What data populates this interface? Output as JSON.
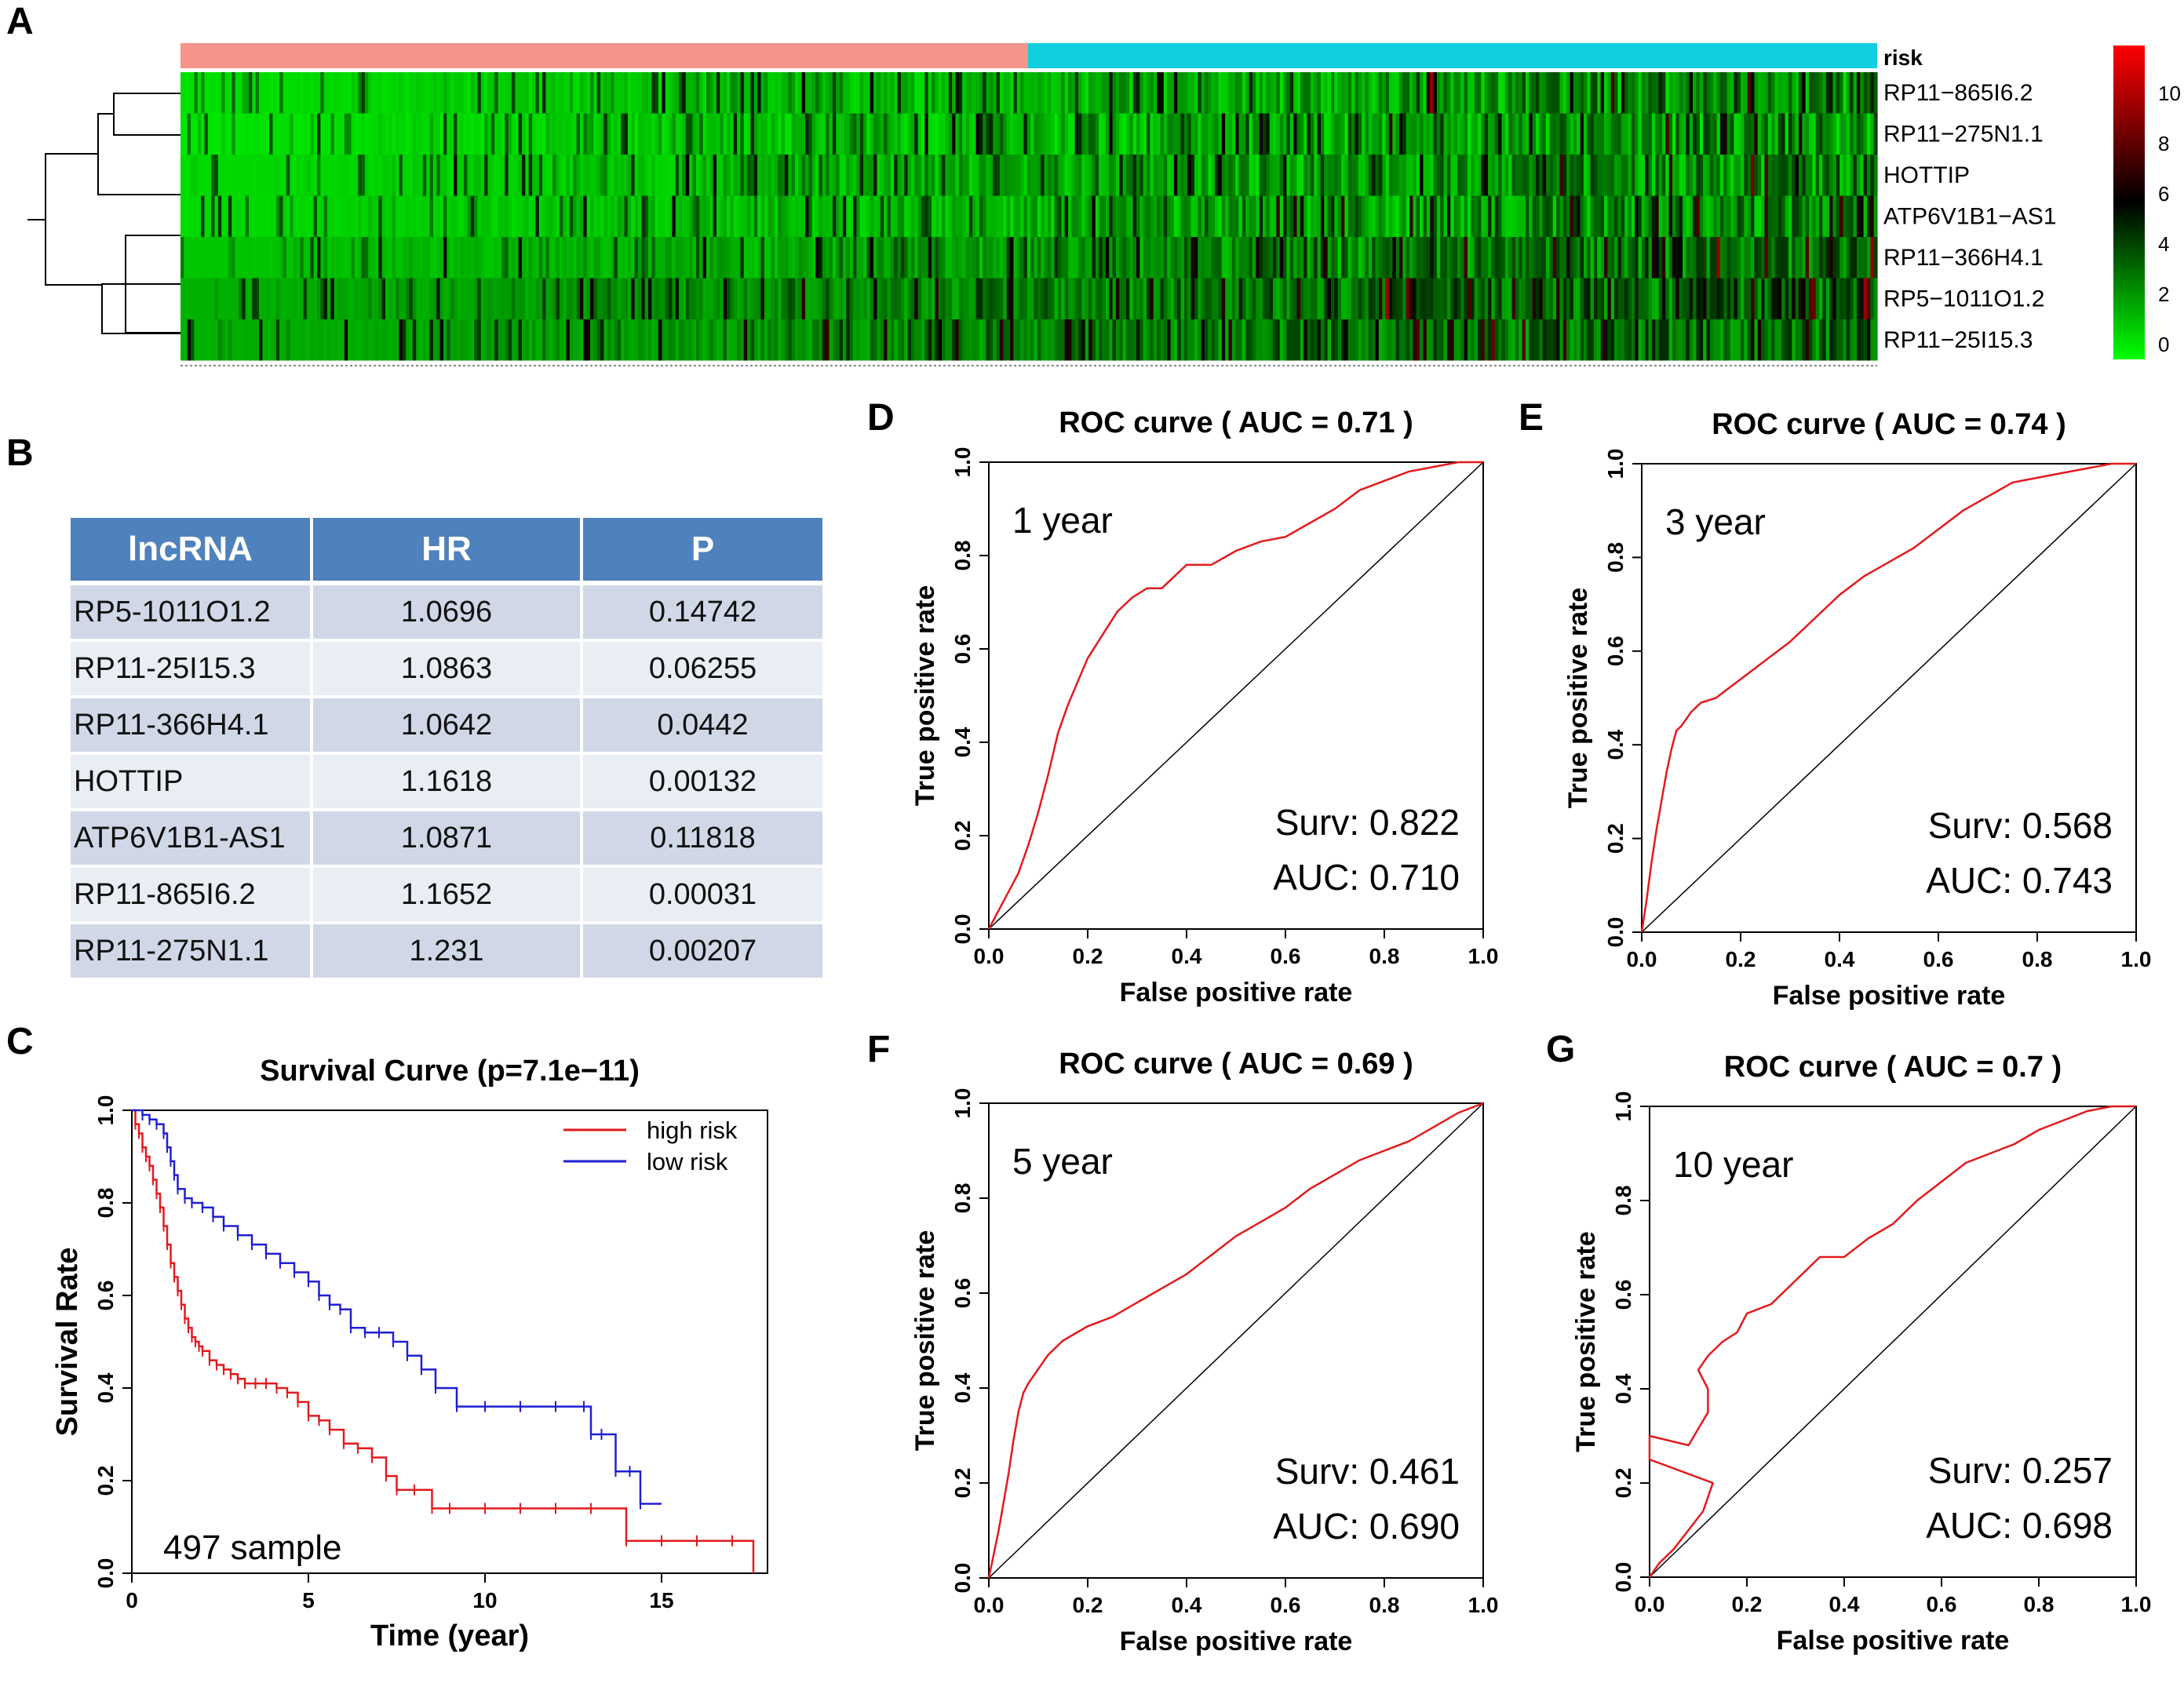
{
  "panels": {
    "A": "A",
    "B": "B",
    "C": "C",
    "D": "D",
    "E": "E",
    "F": "F",
    "G": "G"
  },
  "colors": {
    "high_risk": "#e31a1c",
    "low_risk": "#1f1fd1",
    "risk_high_bar": "#f4948a",
    "risk_low_bar": "#12cfe0",
    "heat_low": "#00ff00",
    "heat_mid": "#000000",
    "heat_high": "#ff0000",
    "table_header": "#4f81bd"
  },
  "heatmap": {
    "annotation_label": "risk",
    "genes": [
      "RP11−865I6.2",
      "RP11−275N1.1",
      "HOTTIP",
      "ATP6V1B1−AS1",
      "RP11−366H4.1",
      "RP5−1011O1.2",
      "RP11−25I15.3"
    ],
    "colorbar_ticks": [
      "10",
      "8",
      "6",
      "4",
      "2",
      "0"
    ]
  },
  "table": {
    "headers": [
      "lncRNA",
      "HR",
      "P"
    ],
    "rows": [
      {
        "lncrna": "RP5-1011O1.2",
        "hr": "1.0696",
        "p": "0.14742"
      },
      {
        "lncrna": "RP11-25I15.3",
        "hr": "1.0863",
        "p": "0.06255"
      },
      {
        "lncrna": "RP11-366H4.1",
        "hr": "1.0642",
        "p": "0.0442"
      },
      {
        "lncrna": "HOTTIP",
        "hr": "1.1618",
        "p": "0.00132"
      },
      {
        "lncrna": "ATP6V1B1-AS1",
        "hr": "1.0871",
        "p": "0.11818"
      },
      {
        "lncrna": "RP11-865I6.2",
        "hr": "1.1652",
        "p": "0.00031"
      },
      {
        "lncrna": "RP11-275N1.1",
        "hr": "1.231",
        "p": "0.00207"
      }
    ]
  },
  "chart_data": [
    {
      "id": "survival",
      "type": "line",
      "title": "Survival Curve (p=7.1e−11)",
      "xlabel": "Time (year)",
      "ylabel": "Survival Rate",
      "xlim": [
        0,
        18
      ],
      "ylim": [
        0,
        1
      ],
      "xticks": [
        "0",
        "5",
        "10",
        "15"
      ],
      "yticks": [
        "0.0",
        "0.2",
        "0.4",
        "0.6",
        "0.8",
        "1.0"
      ],
      "annotation": "497 sample",
      "legend": [
        "high risk",
        "low risk"
      ],
      "series": [
        {
          "name": "high risk",
          "x": [
            0,
            0.1,
            0.2,
            0.3,
            0.4,
            0.5,
            0.6,
            0.7,
            0.8,
            0.9,
            1.0,
            1.1,
            1.2,
            1.3,
            1.4,
            1.5,
            1.6,
            1.7,
            1.8,
            1.9,
            2.0,
            2.2,
            2.4,
            2.6,
            2.8,
            3.0,
            3.2,
            3.5,
            3.8,
            4.1,
            4.4,
            4.7,
            5.0,
            5.3,
            5.6,
            6.0,
            6.4,
            6.8,
            7.2,
            7.5,
            8.0,
            8.5,
            9.0,
            10.0,
            11.0,
            12.0,
            13.0,
            14.0,
            15.0,
            16.0,
            17.0,
            17.6
          ],
          "y": [
            1.0,
            0.97,
            0.95,
            0.92,
            0.9,
            0.88,
            0.85,
            0.82,
            0.79,
            0.75,
            0.71,
            0.67,
            0.64,
            0.61,
            0.58,
            0.55,
            0.53,
            0.51,
            0.5,
            0.49,
            0.48,
            0.46,
            0.45,
            0.44,
            0.43,
            0.42,
            0.41,
            0.41,
            0.41,
            0.4,
            0.39,
            0.37,
            0.34,
            0.33,
            0.31,
            0.28,
            0.27,
            0.25,
            0.21,
            0.18,
            0.18,
            0.14,
            0.14,
            0.14,
            0.14,
            0.14,
            0.14,
            0.07,
            0.07,
            0.07,
            0.07,
            0.0
          ]
        },
        {
          "name": "low risk",
          "x": [
            0,
            0.3,
            0.5,
            0.7,
            0.9,
            1.0,
            1.1,
            1.2,
            1.3,
            1.5,
            1.7,
            2.0,
            2.3,
            2.6,
            3.0,
            3.4,
            3.8,
            4.2,
            4.6,
            5.0,
            5.3,
            5.6,
            5.9,
            6.2,
            6.6,
            7.0,
            7.4,
            7.8,
            8.2,
            8.6,
            9.2,
            10.0,
            11.0,
            12.0,
            12.8,
            13.0,
            13.3,
            13.7,
            14.1,
            14.4,
            15.0
          ],
          "y": [
            1.0,
            0.99,
            0.98,
            0.97,
            0.95,
            0.92,
            0.89,
            0.86,
            0.83,
            0.81,
            0.8,
            0.79,
            0.77,
            0.75,
            0.73,
            0.71,
            0.69,
            0.67,
            0.65,
            0.63,
            0.6,
            0.58,
            0.57,
            0.53,
            0.52,
            0.52,
            0.5,
            0.47,
            0.44,
            0.4,
            0.36,
            0.36,
            0.36,
            0.36,
            0.36,
            0.3,
            0.3,
            0.22,
            0.22,
            0.15,
            0.15
          ]
        }
      ]
    },
    {
      "id": "rocD",
      "type": "line",
      "title": "ROC curve ( AUC =  0.71 )",
      "xlabel": "False positive rate",
      "ylabel": "True positive rate",
      "xlim": [
        0,
        1
      ],
      "ylim": [
        0,
        1
      ],
      "xticks": [
        "0.0",
        "0.2",
        "0.4",
        "0.6",
        "0.8",
        "1.0"
      ],
      "yticks": [
        "0.0",
        "0.2",
        "0.4",
        "0.6",
        "0.8",
        "1.0"
      ],
      "label": "1 year",
      "surv": "Surv: 0.822",
      "auc": "AUC: 0.710",
      "series": [
        {
          "name": "roc",
          "x": [
            0,
            0.02,
            0.04,
            0.06,
            0.08,
            0.1,
            0.12,
            0.14,
            0.16,
            0.18,
            0.2,
            0.23,
            0.26,
            0.29,
            0.32,
            0.35,
            0.4,
            0.45,
            0.5,
            0.55,
            0.6,
            0.65,
            0.7,
            0.75,
            0.8,
            0.85,
            0.9,
            0.95,
            1.0
          ],
          "y": [
            0,
            0.04,
            0.08,
            0.12,
            0.18,
            0.25,
            0.33,
            0.42,
            0.48,
            0.53,
            0.58,
            0.63,
            0.68,
            0.71,
            0.73,
            0.73,
            0.78,
            0.78,
            0.81,
            0.83,
            0.84,
            0.87,
            0.9,
            0.94,
            0.96,
            0.98,
            0.99,
            1.0,
            1.0
          ]
        }
      ]
    },
    {
      "id": "rocE",
      "type": "line",
      "title": "ROC curve ( AUC =  0.74 )",
      "xlabel": "False positive rate",
      "ylabel": "True positive rate",
      "xlim": [
        0,
        1
      ],
      "ylim": [
        0,
        1
      ],
      "xticks": [
        "0.0",
        "0.2",
        "0.4",
        "0.6",
        "0.8",
        "1.0"
      ],
      "yticks": [
        "0.0",
        "0.2",
        "0.4",
        "0.6",
        "0.8",
        "1.0"
      ],
      "label": "3 year",
      "surv": "Surv: 0.568",
      "auc": "AUC: 0.743",
      "series": [
        {
          "name": "roc",
          "x": [
            0,
            0.01,
            0.02,
            0.03,
            0.04,
            0.05,
            0.06,
            0.07,
            0.08,
            0.1,
            0.12,
            0.15,
            0.2,
            0.25,
            0.3,
            0.35,
            0.4,
            0.45,
            0.5,
            0.55,
            0.6,
            0.65,
            0.7,
            0.75,
            0.8,
            0.85,
            0.9,
            0.95,
            1.0
          ],
          "y": [
            0,
            0.07,
            0.15,
            0.22,
            0.28,
            0.34,
            0.39,
            0.43,
            0.44,
            0.47,
            0.49,
            0.5,
            0.54,
            0.58,
            0.62,
            0.67,
            0.72,
            0.76,
            0.79,
            0.82,
            0.86,
            0.9,
            0.93,
            0.96,
            0.97,
            0.98,
            0.99,
            1.0,
            1.0
          ]
        }
      ]
    },
    {
      "id": "rocF",
      "type": "line",
      "title": "ROC curve ( AUC =  0.69 )",
      "xlabel": "False positive rate",
      "ylabel": "True positive rate",
      "xlim": [
        0,
        1
      ],
      "ylim": [
        0,
        1
      ],
      "xticks": [
        "0.0",
        "0.2",
        "0.4",
        "0.6",
        "0.8",
        "1.0"
      ],
      "yticks": [
        "0.0",
        "0.2",
        "0.4",
        "0.6",
        "0.8",
        "1.0"
      ],
      "label": "5 year",
      "surv": "Surv: 0.461",
      "auc": "AUC: 0.690",
      "series": [
        {
          "name": "roc",
          "x": [
            0,
            0.01,
            0.02,
            0.03,
            0.04,
            0.05,
            0.06,
            0.07,
            0.08,
            0.1,
            0.12,
            0.15,
            0.2,
            0.25,
            0.3,
            0.35,
            0.4,
            0.45,
            0.5,
            0.55,
            0.6,
            0.65,
            0.7,
            0.75,
            0.8,
            0.85,
            0.9,
            0.95,
            1.0
          ],
          "y": [
            0,
            0.05,
            0.1,
            0.16,
            0.22,
            0.29,
            0.35,
            0.39,
            0.41,
            0.44,
            0.47,
            0.5,
            0.53,
            0.55,
            0.58,
            0.61,
            0.64,
            0.68,
            0.72,
            0.75,
            0.78,
            0.82,
            0.85,
            0.88,
            0.9,
            0.92,
            0.95,
            0.98,
            1.0
          ]
        }
      ]
    },
    {
      "id": "rocG",
      "type": "line",
      "title": "ROC curve ( AUC =  0.7 )",
      "xlabel": "False positive rate",
      "ylabel": "True positive rate",
      "xlim": [
        0,
        1
      ],
      "ylim": [
        0,
        1
      ],
      "xticks": [
        "0.0",
        "0.2",
        "0.4",
        "0.6",
        "0.8",
        "1.0"
      ],
      "yticks": [
        "0.0",
        "0.2",
        "0.4",
        "0.6",
        "0.8",
        "1.0"
      ],
      "label": "10 year",
      "surv": "Surv: 0.257",
      "auc": "AUC: 0.698",
      "series": [
        {
          "name": "roc",
          "x": [
            0,
            0.02,
            0.05,
            0.08,
            0.11,
            0.13,
            0.0,
            0.0,
            0.08,
            0.12,
            0.12,
            0.1,
            0.12,
            0.15,
            0.18,
            0.2,
            0.25,
            0.3,
            0.35,
            0.4,
            0.45,
            0.5,
            0.55,
            0.6,
            0.65,
            0.7,
            0.75,
            0.8,
            0.85,
            0.9,
            0.95,
            1.0
          ],
          "y": [
            0,
            0.03,
            0.06,
            0.1,
            0.14,
            0.2,
            0.25,
            0.3,
            0.28,
            0.35,
            0.4,
            0.44,
            0.47,
            0.5,
            0.52,
            0.56,
            0.58,
            0.63,
            0.68,
            0.68,
            0.72,
            0.75,
            0.8,
            0.84,
            0.88,
            0.9,
            0.92,
            0.95,
            0.97,
            0.99,
            1.0,
            1.0
          ]
        }
      ]
    }
  ]
}
